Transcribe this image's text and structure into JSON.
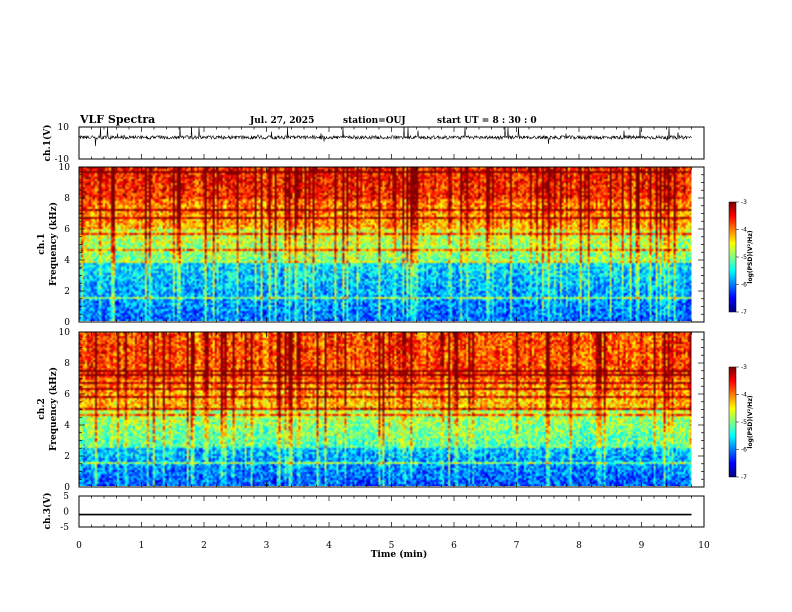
{
  "header": {
    "title": "VLF Spectra",
    "date": "Jul. 27, 2025",
    "station": "station=OUJ",
    "start": "start  UT =  8 : 30 : 0"
  },
  "chart_data": [
    {
      "type": "line",
      "panel": "ch.1 waveform",
      "ylabel": "ch.1(V)",
      "ylim": [
        -10,
        10
      ],
      "yticks": [
        "10",
        "-10"
      ],
      "xlim": [
        0,
        10
      ],
      "baseline": 3.5,
      "color": "#000000"
    },
    {
      "type": "heatmap",
      "panel": "ch.1 spectrogram",
      "ylabel": "ch.1\nFrequency (kHz)",
      "ylim": [
        0,
        10
      ],
      "yticks": [
        "0",
        "2",
        "4",
        "6",
        "8",
        "10"
      ],
      "xlim": [
        0,
        10
      ],
      "data_end_min": 9.8,
      "colorbar": {
        "min": -7,
        "max": -3,
        "ticks": [
          "-3",
          "-4",
          "-5",
          "-6",
          "-7"
        ],
        "label": "log(PSD)(V²/Hz)"
      },
      "bands_khz": [
        {
          "from": 0,
          "to": 4,
          "level": -6.1
        },
        {
          "from": 4,
          "to": 6,
          "level": -5.0
        },
        {
          "from": 6,
          "to": 8,
          "level": -4.2
        },
        {
          "from": 8,
          "to": 10,
          "level": -3.6
        }
      ]
    },
    {
      "type": "heatmap",
      "panel": "ch.2 spectrogram",
      "ylabel": "ch.2\nFrequency (kHz)",
      "ylim": [
        0,
        10
      ],
      "yticks": [
        "0",
        "2",
        "4",
        "6",
        "8",
        "10"
      ],
      "xlim": [
        0,
        10
      ],
      "data_end_min": 9.8,
      "colorbar": {
        "min": -7,
        "max": -3,
        "ticks": [
          "-3",
          "-4",
          "-5",
          "-6",
          "-7"
        ],
        "label": "log(PSD)(V²/Hz)"
      },
      "bands_khz": [
        {
          "from": 0,
          "to": 2.5,
          "level": -6.2
        },
        {
          "from": 2.5,
          "to": 5,
          "level": -5.2
        },
        {
          "from": 5,
          "to": 7,
          "level": -4.3
        },
        {
          "from": 7,
          "to": 10,
          "level": -3.8
        }
      ]
    },
    {
      "type": "line",
      "panel": "ch.3 waveform",
      "ylabel": "ch.3(V)",
      "ylim": [
        -5,
        5
      ],
      "yticks": [
        "5",
        "0",
        "-5"
      ],
      "xlim": [
        0,
        10
      ],
      "values_x": [
        0,
        9.8
      ],
      "values_y": [
        -1,
        -1
      ],
      "color": "#000000"
    }
  ],
  "xaxis": {
    "label": "Time (min)",
    "ticks": [
      "0",
      "1",
      "2",
      "3",
      "4",
      "5",
      "6",
      "7",
      "8",
      "9",
      "10"
    ]
  }
}
